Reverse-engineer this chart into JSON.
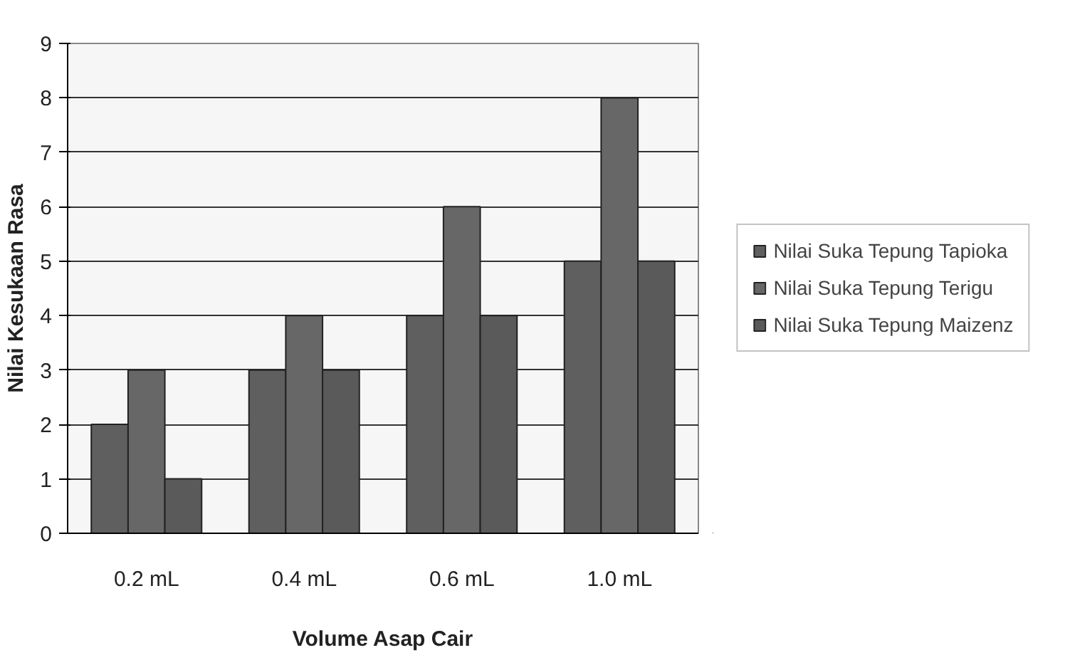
{
  "chart_data": {
    "type": "bar",
    "xlabel": "Volume Asap Cair",
    "ylabel": "Nilai Kesukaan Rasa",
    "categories": [
      "0.2 mL",
      "0.4 mL",
      "0.6 mL",
      "1.0 mL"
    ],
    "series": [
      {
        "name": "Nilai Suka Tepung Tapioka",
        "color": "#5f5f5f",
        "values": [
          2,
          3,
          4,
          5
        ]
      },
      {
        "name": "Nilai Suka Tepung Terigu",
        "color": "#676767",
        "values": [
          3,
          4,
          6,
          8
        ]
      },
      {
        "name": "Nilai Suka Tepung Maizenz",
        "color": "#5a5a5a",
        "values": [
          1,
          3,
          4,
          5
        ]
      }
    ],
    "ylim": [
      0,
      9
    ],
    "yticks": [
      0,
      1,
      2,
      3,
      4,
      5,
      6,
      7,
      8,
      9
    ],
    "grid": "y",
    "legend": "right"
  }
}
